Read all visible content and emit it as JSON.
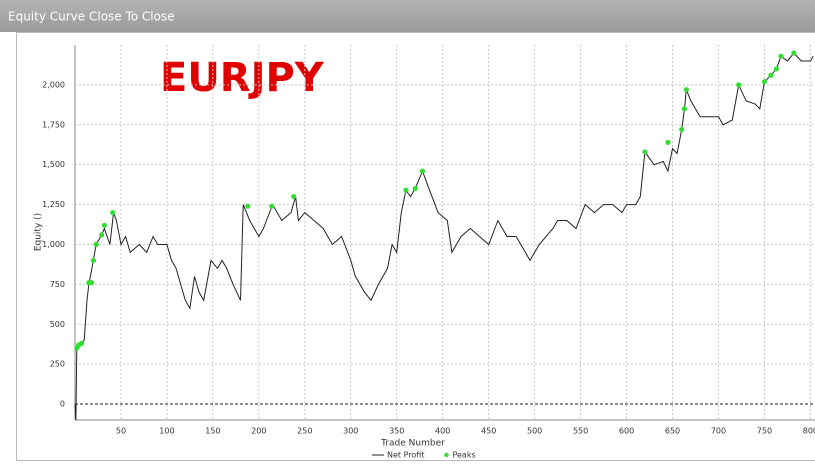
{
  "chart_data": {
    "type": "line",
    "title": "Equity Curve Close To Close",
    "annotation": "EURJPY",
    "xlabel": "Trade Number",
    "ylabel": "Equity ()",
    "xlim": [
      0,
      805
    ],
    "ylim": [
      -100,
      2250
    ],
    "xticks": [
      50,
      100,
      150,
      200,
      250,
      300,
      350,
      400,
      450,
      500,
      550,
      600,
      650,
      700,
      750,
      800
    ],
    "yticks": [
      0,
      {
        "value": 250,
        "label": "250"
      },
      {
        "value": 500,
        "label": "500"
      },
      {
        "value": 750,
        "label": "750"
      },
      {
        "value": 1000,
        "label": "1,000"
      },
      {
        "value": 1250,
        "label": "1,250"
      },
      {
        "value": 1500,
        "label": "1,500"
      },
      {
        "value": 1750,
        "label": "1,750"
      },
      {
        "value": 2000,
        "label": "2,000"
      }
    ],
    "grid": true,
    "series": [
      {
        "name": "Net Profit",
        "color": "#222222",
        "kind": "line",
        "x": [
          0,
          1,
          2,
          5,
          10,
          13,
          15,
          20,
          23,
          28,
          32,
          38,
          42,
          45,
          50,
          55,
          60,
          70,
          78,
          85,
          90,
          95,
          100,
          105,
          110,
          115,
          120,
          125,
          130,
          135,
          140,
          148,
          155,
          160,
          165,
          172,
          180,
          183,
          190,
          200,
          205,
          215,
          225,
          235,
          240,
          243,
          250,
          260,
          270,
          280,
          290,
          300,
          305,
          315,
          322,
          330,
          340,
          345,
          350,
          355,
          360,
          365,
          370,
          378,
          385,
          395,
          405,
          410,
          420,
          430,
          440,
          450,
          460,
          470,
          480,
          490,
          495,
          505,
          520,
          525,
          535,
          545,
          555,
          565,
          575,
          585,
          595,
          600,
          610,
          615,
          620,
          630,
          640,
          645,
          650,
          655,
          660,
          663,
          665,
          670,
          680,
          690,
          700,
          705,
          715,
          722,
          730,
          740,
          745,
          750,
          757,
          763,
          768,
          775,
          782,
          790,
          800,
          803
        ],
        "values": [
          0,
          -100,
          350,
          370,
          400,
          650,
          750,
          900,
          1000,
          1050,
          1100,
          1000,
          1200,
          1150,
          1000,
          1050,
          950,
          1000,
          950,
          1050,
          1000,
          1000,
          1000,
          900,
          850,
          750,
          650,
          600,
          800,
          700,
          650,
          900,
          850,
          900,
          850,
          750,
          650,
          1250,
          1150,
          1050,
          1100,
          1250,
          1150,
          1200,
          1300,
          1150,
          1200,
          1150,
          1100,
          1000,
          1050,
          900,
          800,
          700,
          650,
          750,
          850,
          1000,
          950,
          1200,
          1340,
          1300,
          1350,
          1460,
          1350,
          1200,
          1150,
          950,
          1050,
          1100,
          1050,
          1000,
          1150,
          1050,
          1050,
          950,
          900,
          1000,
          1100,
          1150,
          1150,
          1100,
          1250,
          1200,
          1250,
          1250,
          1200,
          1250,
          1250,
          1300,
          1580,
          1500,
          1520,
          1460,
          1600,
          1570,
          1720,
          1850,
          1970,
          1900,
          1800,
          1800,
          1800,
          1750,
          1780,
          2000,
          1900,
          1880,
          1850,
          2020,
          2060,
          2100,
          2180,
          2150,
          2200,
          2150,
          2150,
          2180
        ]
      },
      {
        "name": "Peaks",
        "color": "#33dd33",
        "kind": "scatter",
        "x": [
          2,
          4,
          7,
          15,
          18,
          20,
          23,
          29,
          32,
          41,
          188,
          214,
          238,
          360,
          370,
          378,
          620,
          645,
          660,
          663,
          665,
          722,
          750,
          757,
          763,
          768,
          782
        ],
        "values": [
          350,
          370,
          380,
          760,
          760,
          900,
          1000,
          1060,
          1120,
          1200,
          1240,
          1240,
          1300,
          1340,
          1350,
          1460,
          1580,
          1640,
          1720,
          1850,
          1970,
          2000,
          2020,
          2060,
          2100,
          2180,
          2200
        ]
      }
    ]
  }
}
